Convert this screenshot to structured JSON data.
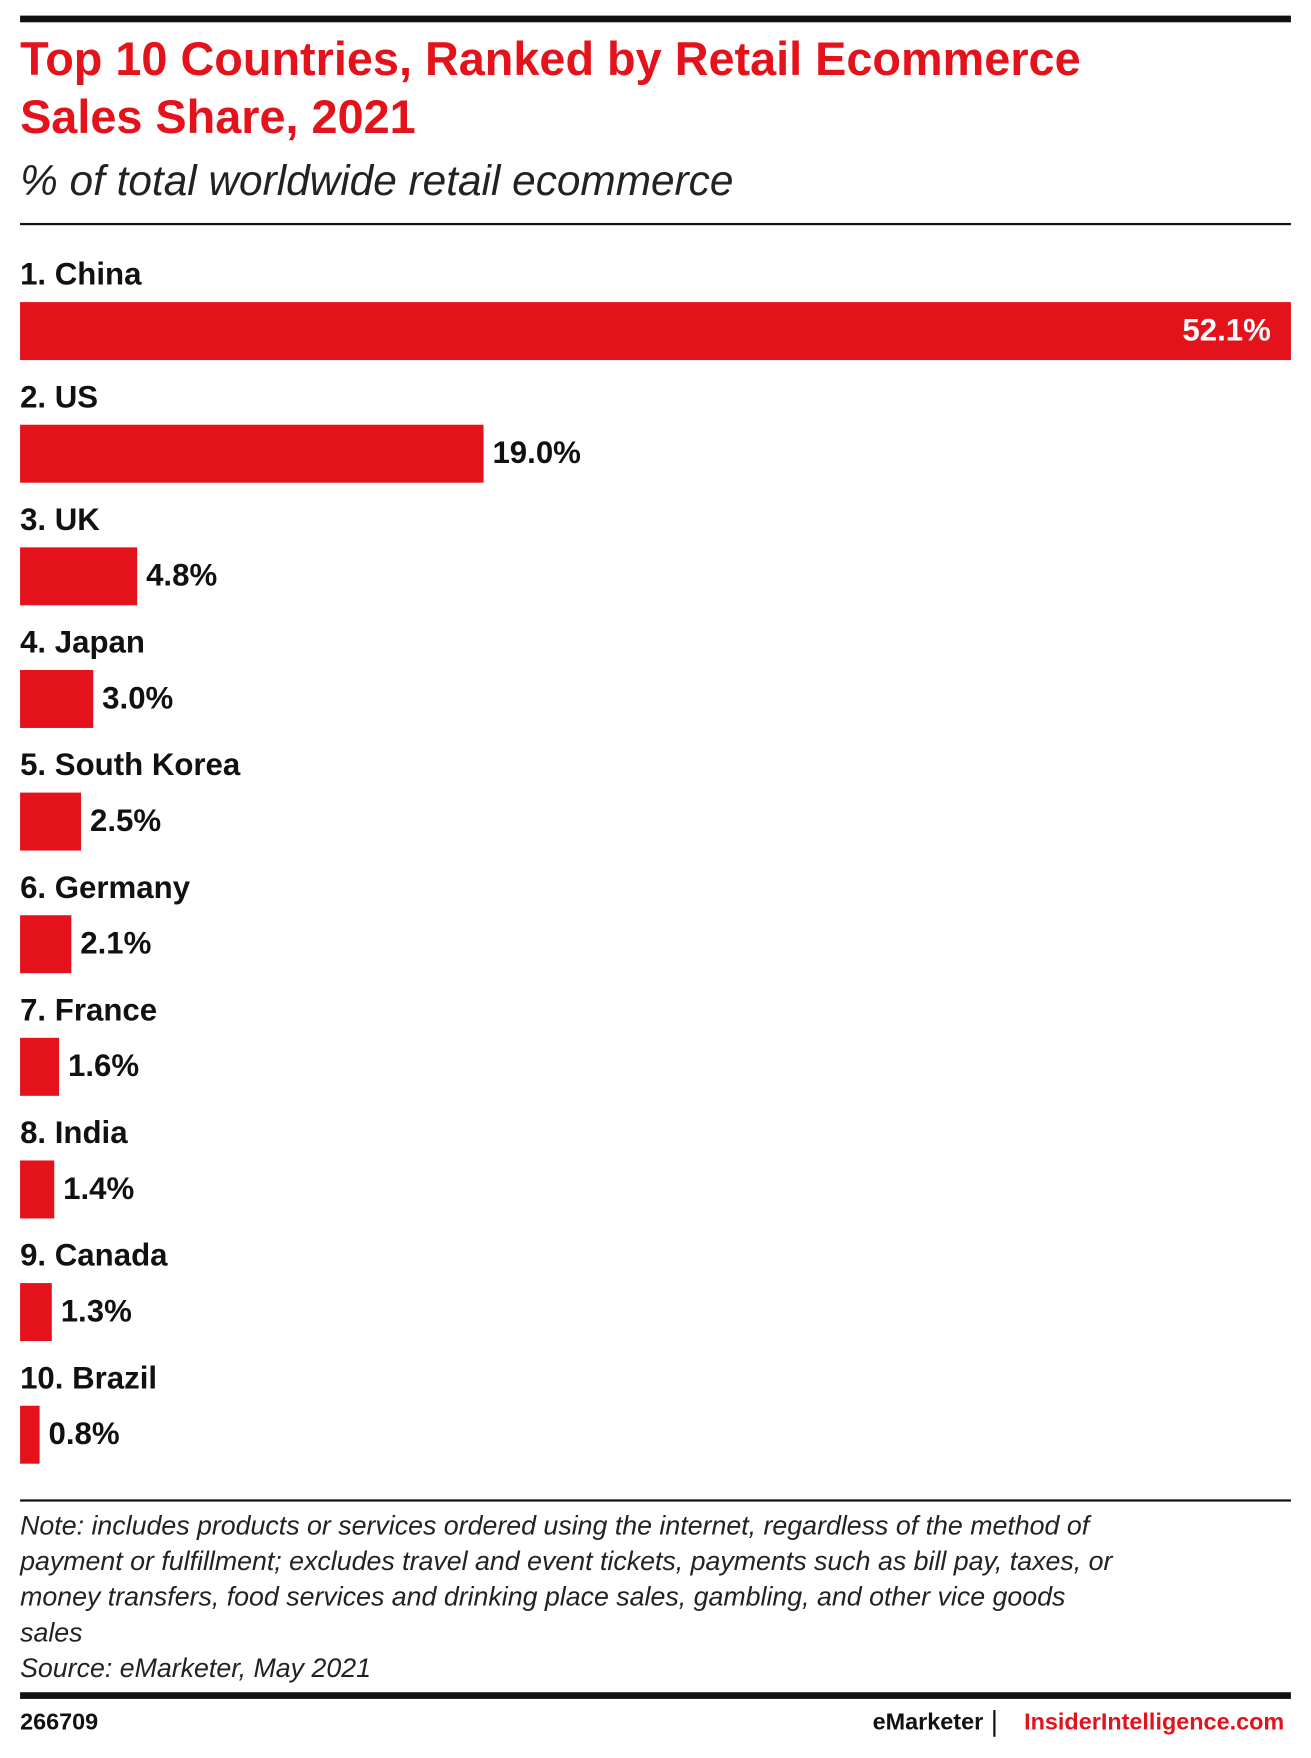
{
  "chart_data": {
    "type": "bar",
    "orientation": "horizontal",
    "title": [
      "Top 10 Countries, Ranked by Retail Ecommerce",
      "Sales Share, 2021"
    ],
    "subtitle": "% of total worldwide retail ecommerce",
    "categories": [
      "1. China",
      "2. US",
      "3. UK",
      "4. Japan",
      "5. South Korea",
      "6. Germany",
      "7. France",
      "8. India",
      "9. Canada",
      "10. Brazil"
    ],
    "values": [
      52.1,
      19.0,
      4.8,
      3.0,
      2.5,
      2.1,
      1.6,
      1.4,
      1.3,
      0.8
    ],
    "value_labels": [
      "52.1%",
      "19.0%",
      "4.8%",
      "3.0%",
      "2.5%",
      "2.1%",
      "1.6%",
      "1.4%",
      "1.3%",
      "0.8%"
    ],
    "color": "#e3121b",
    "note": [
      "Note: includes products or services ordered using the internet, regardless of the method of",
      "payment or fulfillment; excludes travel and event tickets, payments such as bill pay, taxes, or",
      "money transfers, food services and drinking place sales, gambling, and other vice goods",
      "sales"
    ],
    "source": "Source: eMarketer, May 2021",
    "chart_id": "266709",
    "brand": "eMarketer",
    "site": "InsiderIntelligence.com"
  }
}
